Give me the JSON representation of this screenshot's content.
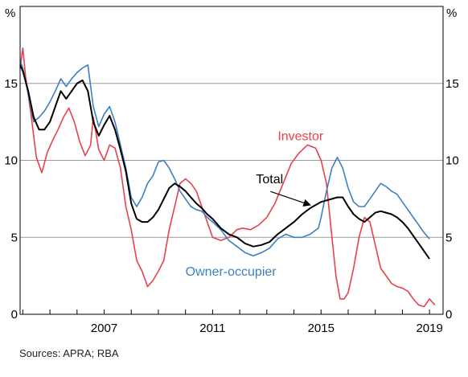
{
  "source_note": "Sources: APRA; RBA",
  "chart_data": {
    "type": "line",
    "title": "",
    "xlabel": "",
    "ylabel": "",
    "y_unit_left": "%",
    "y_unit_right": "%",
    "xlim": [
      2003.9,
      2019.5
    ],
    "ylim": [
      0,
      20
    ],
    "y_ticks": [
      0,
      5,
      10,
      15
    ],
    "y_tick_labels": [
      "0",
      "5",
      "10",
      "15"
    ],
    "x_ticks": [
      2007,
      2011,
      2015,
      2019
    ],
    "x_tick_labels": [
      "2007",
      "2011",
      "2015",
      "2019"
    ],
    "grid": true,
    "series": [
      {
        "name": "Investor",
        "color": "#e8414b",
        "x": [
          2003.9,
          2004.0,
          2004.1,
          2004.3,
          2004.5,
          2004.7,
          2004.9,
          2005.1,
          2005.3,
          2005.5,
          2005.7,
          2005.9,
          2006.1,
          2006.3,
          2006.5,
          2006.6,
          2006.8,
          2007.0,
          2007.2,
          2007.4,
          2007.6,
          2007.8,
          2008.0,
          2008.2,
          2008.4,
          2008.6,
          2008.8,
          2009.0,
          2009.2,
          2009.4,
          2009.6,
          2009.8,
          2010.0,
          2010.2,
          2010.4,
          2010.6,
          2010.8,
          2011.0,
          2011.3,
          2011.6,
          2011.9,
          2012.1,
          2012.4,
          2012.7,
          2013.0,
          2013.3,
          2013.6,
          2013.9,
          2014.2,
          2014.5,
          2014.8,
          2015.0,
          2015.2,
          2015.4,
          2015.55,
          2015.7,
          2015.85,
          2016.0,
          2016.2,
          2016.4,
          2016.6,
          2016.8,
          2017.0,
          2017.2,
          2017.4,
          2017.6,
          2017.8,
          2018.0,
          2018.2,
          2018.4,
          2018.6,
          2018.8,
          2019.0,
          2019.2
        ],
        "values": [
          16.0,
          17.3,
          15.5,
          13.0,
          10.2,
          9.2,
          10.5,
          11.3,
          12.0,
          12.8,
          13.4,
          12.5,
          11.2,
          10.3,
          11.0,
          12.8,
          10.7,
          10.0,
          11.0,
          10.8,
          9.5,
          7.0,
          5.5,
          3.5,
          2.8,
          1.8,
          2.2,
          2.8,
          3.5,
          5.5,
          7.0,
          8.5,
          8.8,
          8.5,
          8.0,
          7.0,
          6.0,
          5.0,
          4.8,
          5.0,
          5.5,
          5.6,
          5.5,
          5.8,
          6.3,
          7.2,
          8.5,
          9.8,
          10.5,
          11.0,
          10.8,
          10.0,
          8.5,
          5.0,
          2.5,
          1.0,
          1.0,
          1.4,
          3.0,
          5.0,
          6.3,
          6.0,
          4.5,
          3.0,
          2.5,
          2.0,
          1.8,
          1.7,
          1.5,
          1.0,
          0.6,
          0.5,
          1.0,
          0.6
        ]
      },
      {
        "name": "Owner-occupier",
        "color": "#3d7fc4",
        "x": [
          2003.9,
          2004.0,
          2004.2,
          2004.4,
          2004.6,
          2004.8,
          2005.0,
          2005.2,
          2005.4,
          2005.6,
          2005.8,
          2006.0,
          2006.2,
          2006.4,
          2006.6,
          2006.8,
          2007.0,
          2007.2,
          2007.4,
          2007.6,
          2007.8,
          2008.0,
          2008.2,
          2008.4,
          2008.6,
          2008.8,
          2009.0,
          2009.2,
          2009.4,
          2009.6,
          2009.8,
          2010.0,
          2010.2,
          2010.4,
          2010.6,
          2010.8,
          2011.0,
          2011.3,
          2011.6,
          2011.9,
          2012.2,
          2012.5,
          2012.8,
          2013.1,
          2013.4,
          2013.7,
          2014.0,
          2014.3,
          2014.6,
          2014.9,
          2015.0,
          2015.2,
          2015.4,
          2015.6,
          2015.8,
          2016.0,
          2016.2,
          2016.4,
          2016.6,
          2016.8,
          2017.0,
          2017.2,
          2017.4,
          2017.6,
          2017.8,
          2018.0,
          2018.2,
          2018.4,
          2018.6,
          2018.8,
          2019.0
        ],
        "values": [
          16.5,
          16.0,
          14.3,
          12.5,
          12.8,
          13.2,
          13.8,
          14.5,
          15.3,
          14.8,
          15.3,
          15.7,
          16.0,
          16.2,
          13.5,
          12.2,
          13.0,
          13.5,
          12.5,
          11.0,
          9.5,
          7.6,
          7.0,
          7.6,
          8.5,
          9.0,
          9.9,
          10.0,
          9.5,
          8.8,
          8.0,
          7.5,
          7.0,
          6.8,
          6.7,
          6.3,
          6.0,
          5.5,
          4.8,
          4.4,
          4.0,
          3.8,
          4.0,
          4.3,
          4.9,
          5.2,
          5.0,
          5.0,
          5.2,
          5.6,
          6.3,
          8.0,
          9.5,
          10.2,
          9.5,
          8.2,
          7.3,
          7.0,
          7.0,
          7.5,
          8.0,
          8.5,
          8.3,
          8.0,
          7.8,
          7.3,
          6.8,
          6.3,
          5.8,
          5.3,
          4.9
        ]
      },
      {
        "name": "Total",
        "color": "#000000",
        "x": [
          2003.9,
          2004.0,
          2004.2,
          2004.4,
          2004.6,
          2004.8,
          2005.0,
          2005.2,
          2005.4,
          2005.6,
          2005.8,
          2006.0,
          2006.2,
          2006.4,
          2006.6,
          2006.8,
          2007.0,
          2007.2,
          2007.4,
          2007.6,
          2007.8,
          2008.0,
          2008.2,
          2008.4,
          2008.6,
          2008.8,
          2009.0,
          2009.2,
          2009.4,
          2009.6,
          2009.8,
          2010.0,
          2010.2,
          2010.4,
          2010.6,
          2010.8,
          2011.0,
          2011.3,
          2011.6,
          2011.9,
          2012.2,
          2012.5,
          2012.8,
          2013.1,
          2013.4,
          2013.7,
          2014.0,
          2014.3,
          2014.6,
          2014.9,
          2015.0,
          2015.2,
          2015.4,
          2015.6,
          2015.8,
          2016.0,
          2016.2,
          2016.4,
          2016.6,
          2016.8,
          2017.0,
          2017.2,
          2017.4,
          2017.6,
          2017.8,
          2018.0,
          2018.2,
          2018.4,
          2018.6,
          2018.8,
          2019.0
        ],
        "values": [
          16.2,
          15.8,
          14.5,
          12.8,
          12.0,
          12.0,
          12.5,
          13.5,
          14.5,
          14.0,
          14.5,
          15.0,
          15.2,
          14.5,
          12.5,
          11.6,
          12.3,
          12.9,
          12.0,
          10.7,
          9.3,
          7.2,
          6.2,
          6.0,
          6.0,
          6.3,
          6.8,
          7.5,
          8.2,
          8.5,
          8.3,
          8.0,
          7.6,
          7.2,
          6.9,
          6.5,
          6.2,
          5.6,
          5.2,
          5.0,
          4.6,
          4.4,
          4.5,
          4.7,
          5.2,
          5.6,
          6.0,
          6.5,
          6.9,
          7.2,
          7.3,
          7.4,
          7.5,
          7.6,
          7.6,
          7.0,
          6.5,
          6.2,
          6.0,
          6.3,
          6.6,
          6.7,
          6.6,
          6.5,
          6.3,
          6.0,
          5.6,
          5.1,
          4.6,
          4.1,
          3.6
        ]
      }
    ],
    "annotations": [
      {
        "text": "Investor",
        "color": "#e8414b",
        "at_x": 2013.4,
        "at_y": 11.3
      },
      {
        "text": "Total",
        "color": "#000000",
        "at_x": 2012.6,
        "at_y": 8.5,
        "arrow_to_x": 2014.6,
        "arrow_to_y": 7.1
      },
      {
        "text": "Owner-occupier",
        "color": "#3d7fc4",
        "at_x": 2010.0,
        "at_y": 2.5
      }
    ]
  }
}
